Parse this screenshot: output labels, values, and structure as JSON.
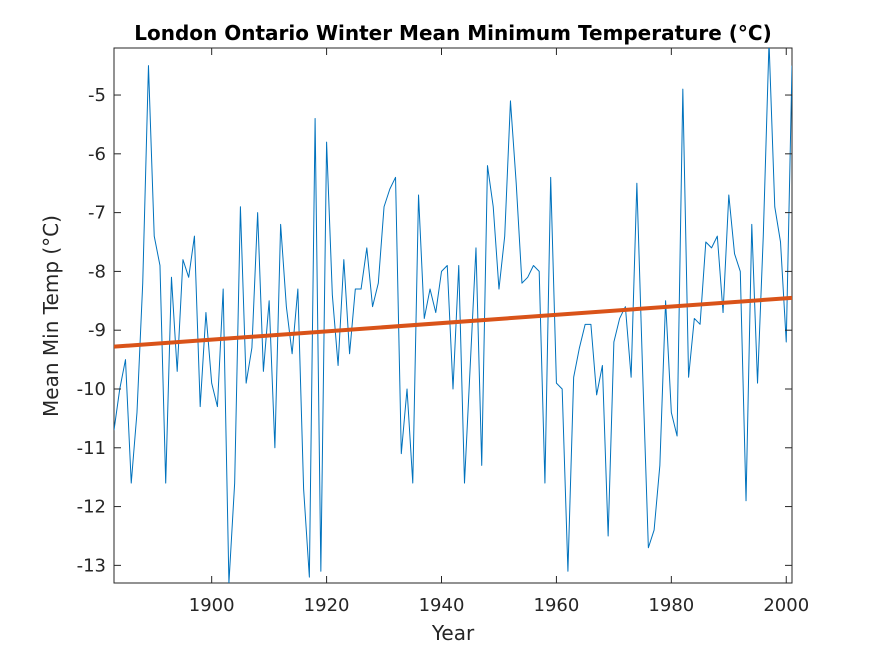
{
  "chart_data": {
    "type": "line",
    "title": "London Ontario Winter Mean Minimum Temperature (°C)",
    "xlabel": "Year",
    "ylabel": "Mean Min Temp (°C)",
    "xlim": [
      1883,
      2001
    ],
    "ylim": [
      -13.3,
      -4.2
    ],
    "xticks": [
      1900,
      1920,
      1940,
      1960,
      1980,
      2000
    ],
    "yticks": [
      -13,
      -12,
      -11,
      -10,
      -9,
      -8,
      -7,
      -6,
      -5
    ],
    "grid": false,
    "series": [
      {
        "color": "#0072BD",
        "x": [
          1883,
          1884,
          1885,
          1886,
          1887,
          1888,
          1889,
          1890,
          1891,
          1892,
          1893,
          1894,
          1895,
          1896,
          1897,
          1898,
          1899,
          1900,
          1901,
          1902,
          1903,
          1904,
          1905,
          1906,
          1907,
          1908,
          1909,
          1910,
          1911,
          1912,
          1913,
          1914,
          1915,
          1916,
          1917,
          1918,
          1919,
          1920,
          1921,
          1922,
          1923,
          1924,
          1925,
          1926,
          1927,
          1928,
          1929,
          1930,
          1931,
          1932,
          1933,
          1934,
          1935,
          1936,
          1937,
          1938,
          1939,
          1940,
          1941,
          1942,
          1943,
          1944,
          1945,
          1946,
          1947,
          1948,
          1949,
          1950,
          1951,
          1952,
          1953,
          1954,
          1955,
          1956,
          1957,
          1958,
          1959,
          1960,
          1961,
          1962,
          1963,
          1964,
          1965,
          1966,
          1967,
          1968,
          1969,
          1970,
          1971,
          1972,
          1973,
          1974,
          1975,
          1976,
          1977,
          1978,
          1979,
          1980,
          1981,
          1982,
          1983,
          1984,
          1985,
          1986,
          1987,
          1988,
          1989,
          1990,
          1991,
          1992,
          1993,
          1994,
          1995,
          1996,
          1997,
          1998,
          1999,
          2000,
          2001
        ],
        "y": [
          -10.7,
          -10.0,
          -9.5,
          -11.6,
          -10.4,
          -8.2,
          -4.5,
          -7.4,
          -7.9,
          -11.6,
          -8.1,
          -9.7,
          -7.8,
          -8.1,
          -7.4,
          -10.3,
          -8.7,
          -9.9,
          -10.3,
          -8.3,
          -13.3,
          -11.6,
          -6.9,
          -9.9,
          -9.3,
          -7.0,
          -9.7,
          -8.5,
          -11.0,
          -7.2,
          -8.6,
          -9.4,
          -8.3,
          -11.7,
          -13.2,
          -5.4,
          -13.1,
          -5.8,
          -8.4,
          -9.6,
          -7.8,
          -9.4,
          -8.3,
          -8.3,
          -7.6,
          -8.6,
          -8.2,
          -6.9,
          -6.6,
          -6.4,
          -11.1,
          -10.0,
          -11.6,
          -6.7,
          -8.8,
          -8.3,
          -8.7,
          -8.0,
          -7.9,
          -10.0,
          -7.9,
          -11.6,
          -9.6,
          -7.6,
          -11.3,
          -6.2,
          -6.9,
          -8.3,
          -7.4,
          -5.1,
          -6.5,
          -8.2,
          -8.1,
          -7.9,
          -8.0,
          -11.6,
          -6.4,
          -9.9,
          -10.0,
          -13.1,
          -9.8,
          -9.3,
          -8.9,
          -8.9,
          -10.1,
          -9.6,
          -12.5,
          -9.2,
          -8.8,
          -8.6,
          -9.8,
          -6.5,
          -9.7,
          -12.7,
          -12.4,
          -11.3,
          -8.5,
          -10.4,
          -10.8,
          -4.9,
          -9.8,
          -8.8,
          -8.9,
          -7.5,
          -7.6,
          -7.4,
          -8.7,
          -6.7,
          -7.7,
          -8.0,
          -11.9,
          -7.2,
          -9.9,
          -7.4,
          -4.1,
          -6.9,
          -7.5,
          -9.2,
          -4.5
        ]
      },
      {
        "color": "#D95319",
        "x": [
          1883,
          2001
        ],
        "y": [
          -9.28,
          -8.45
        ]
      }
    ]
  }
}
